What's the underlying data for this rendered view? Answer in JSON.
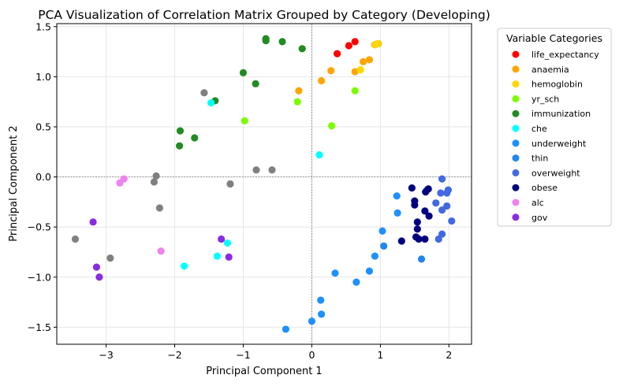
{
  "chart_data": {
    "type": "scatter",
    "title": "PCA Visualization of Correlation Matrix Grouped by Category (Developing)",
    "xlabel": "Principal Component 1",
    "ylabel": "Principal Component 2",
    "xlim": [
      -3.72,
      2.33
    ],
    "ylim": [
      -1.67,
      1.53
    ],
    "xticks": [
      -3,
      -2,
      -1,
      0,
      1,
      2
    ],
    "yticks": [
      -1.5,
      -1.0,
      -0.5,
      0.0,
      0.5,
      1.0,
      1.5
    ],
    "xtick_labels": [
      "−3",
      "−2",
      "−1",
      "0",
      "1",
      "2"
    ],
    "ytick_labels": [
      "−1.5",
      "−1.0",
      "−0.5",
      "0.0",
      "0.5",
      "1.0",
      "1.5"
    ],
    "grid": true,
    "reference_lines": {
      "x": 0,
      "y": 0
    },
    "legend": {
      "title": "Variable Categories",
      "placement": "outside-right"
    },
    "series": [
      {
        "name": "life_expectancy",
        "color": "#ff0000",
        "points": [
          [
            0.37,
            1.23
          ],
          [
            0.54,
            1.31
          ],
          [
            0.63,
            1.35
          ]
        ]
      },
      {
        "name": "anaemia",
        "color": "#ffa500",
        "points": [
          [
            -0.19,
            0.86
          ],
          [
            0.14,
            0.96
          ],
          [
            0.28,
            1.06
          ],
          [
            0.63,
            1.05
          ],
          [
            0.75,
            1.15
          ],
          [
            0.84,
            1.17
          ],
          [
            0.92,
            1.32
          ],
          [
            0.97,
            1.33
          ]
        ]
      },
      {
        "name": "hemoglobin",
        "color": "#ffd700",
        "points": [
          [
            0.71,
            1.07
          ],
          [
            0.93,
            1.32
          ],
          [
            0.96,
            1.33
          ]
        ]
      },
      {
        "name": "yr_sch",
        "color": "#7cfc00",
        "points": [
          [
            -0.98,
            0.56
          ],
          [
            -0.21,
            0.75
          ],
          [
            0.29,
            0.51
          ],
          [
            0.63,
            0.86
          ]
        ]
      },
      {
        "name": "immunization",
        "color": "#228b22",
        "points": [
          [
            -0.67,
            1.38
          ],
          [
            -0.67,
            1.36
          ],
          [
            -0.43,
            1.35
          ],
          [
            -0.14,
            1.28
          ],
          [
            -1.0,
            1.04
          ],
          [
            -0.82,
            0.93
          ],
          [
            -1.41,
            0.76
          ],
          [
            -1.92,
            0.46
          ],
          [
            -1.71,
            0.39
          ],
          [
            -1.93,
            0.31
          ]
        ]
      },
      {
        "name": "che",
        "color": "#00ffff",
        "points": [
          [
            -1.47,
            0.74
          ],
          [
            0.11,
            0.22
          ],
          [
            -1.23,
            -0.66
          ],
          [
            -1.38,
            -0.79
          ],
          [
            -1.86,
            -0.89
          ]
        ]
      },
      {
        "name": "underweight",
        "color": "#1e90ff",
        "points": [
          [
            1.24,
            -0.19
          ],
          [
            1.25,
            -0.36
          ],
          [
            1.03,
            -0.54
          ],
          [
            0.92,
            -0.79
          ],
          [
            0.84,
            -0.94
          ],
          [
            0.34,
            -0.96
          ],
          [
            0.65,
            -1.05
          ],
          [
            0.13,
            -1.23
          ],
          [
            0.14,
            -1.37
          ],
          [
            0.0,
            -1.44
          ],
          [
            -0.38,
            -1.52
          ]
        ]
      },
      {
        "name": "thin",
        "color": "#2186f0",
        "points": [
          [
            1.05,
            -0.69
          ],
          [
            1.6,
            -0.82
          ]
        ]
      },
      {
        "name": "overweight",
        "color": "#4169e1",
        "points": [
          [
            1.9,
            -0.02
          ],
          [
            1.99,
            -0.13
          ],
          [
            1.97,
            -0.16
          ],
          [
            1.88,
            -0.16
          ],
          [
            1.68,
            -0.13
          ],
          [
            1.81,
            -0.26
          ],
          [
            1.97,
            -0.29
          ],
          [
            1.9,
            -0.33
          ],
          [
            2.04,
            -0.44
          ],
          [
            1.9,
            -0.57
          ],
          [
            1.85,
            -0.62
          ]
        ]
      },
      {
        "name": "obese",
        "color": "#000080",
        "points": [
          [
            1.46,
            -0.11
          ],
          [
            1.7,
            -0.12
          ],
          [
            1.66,
            -0.15
          ],
          [
            1.5,
            -0.24
          ],
          [
            1.5,
            -0.28
          ],
          [
            1.65,
            -0.34
          ],
          [
            1.71,
            -0.39
          ],
          [
            1.54,
            -0.45
          ],
          [
            1.54,
            -0.52
          ],
          [
            1.52,
            -0.6
          ],
          [
            1.56,
            -0.62
          ],
          [
            1.65,
            -0.62
          ],
          [
            1.31,
            -0.64
          ]
        ]
      },
      {
        "name": "alc",
        "color": "#ee82ee",
        "points": [
          [
            -2.74,
            -0.02
          ],
          [
            -2.8,
            -0.06
          ],
          [
            -2.2,
            -0.74
          ]
        ]
      },
      {
        "name": "gov",
        "color": "#8a2be2",
        "points": [
          [
            -3.19,
            -0.45
          ],
          [
            -3.14,
            -0.9
          ],
          [
            -3.1,
            -1.0
          ],
          [
            -1.32,
            -0.62
          ],
          [
            -1.21,
            -0.8
          ]
        ]
      },
      {
        "name": "",
        "color": "#808080",
        "points": [
          [
            -1.57,
            0.84
          ],
          [
            -0.81,
            0.07
          ],
          [
            -0.58,
            0.07
          ],
          [
            -2.27,
            0.01
          ],
          [
            -2.3,
            -0.05
          ],
          [
            -1.19,
            -0.07
          ],
          [
            -2.22,
            -0.31
          ],
          [
            -3.45,
            -0.62
          ],
          [
            -2.94,
            -0.81
          ]
        ]
      }
    ]
  }
}
